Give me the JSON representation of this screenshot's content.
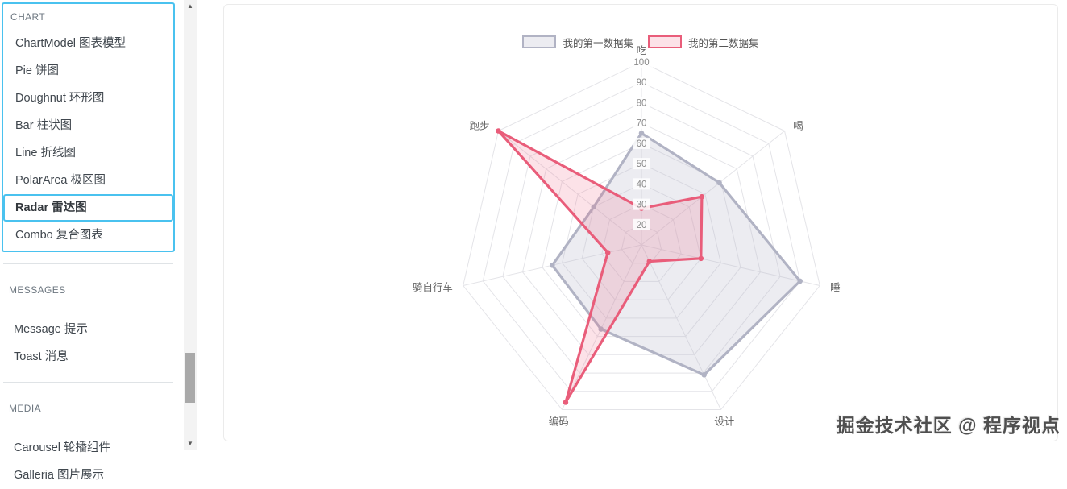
{
  "ui": {
    "accent_color": "#4ac2ef",
    "scrollbar": {
      "up_icon": "▲",
      "down_icon": "▼"
    }
  },
  "sidebar": {
    "sections": [
      {
        "title": "CHART",
        "items": [
          {
            "label": "ChartModel 图表模型",
            "selected": false
          },
          {
            "label": "Pie 饼图",
            "selected": false
          },
          {
            "label": "Doughnut 环形图",
            "selected": false
          },
          {
            "label": "Bar 柱状图",
            "selected": false
          },
          {
            "label": "Line 折线图",
            "selected": false
          },
          {
            "label": "PolarArea 极区图",
            "selected": false
          },
          {
            "label": "Radar 雷达图",
            "selected": true
          },
          {
            "label": "Combo 复合图表",
            "selected": false
          }
        ]
      },
      {
        "title": "MESSAGES",
        "items": [
          {
            "label": "Message 提示",
            "selected": false
          },
          {
            "label": "Toast 消息",
            "selected": false
          }
        ]
      },
      {
        "title": "MEDIA",
        "items": [
          {
            "label": "Carousel 轮播组件",
            "selected": false
          },
          {
            "label": "Galleria 图片展示",
            "selected": false
          }
        ]
      }
    ]
  },
  "chart_data": {
    "type": "radar",
    "title": "",
    "categories": [
      "吃",
      "喝",
      "睡",
      "设计",
      "编码",
      "骑自行车",
      "跑步"
    ],
    "series": [
      {
        "name": "我的第一数据集",
        "values": [
          65,
          59,
          90,
          81,
          56,
          55,
          40
        ],
        "border_color": "#b1b3c4",
        "fill_color": "rgba(179,181,198,0.25)"
      },
      {
        "name": "我的第二数据集",
        "values": [
          28,
          48,
          40,
          19,
          96,
          27,
          100
        ],
        "border_color": "#e95d7a",
        "fill_color": "rgba(236,94,125,0.18)"
      }
    ],
    "scale": {
      "min": 10,
      "max": 100,
      "step": 10,
      "tick_labels": [
        20,
        30,
        40,
        50,
        60,
        70,
        80,
        90,
        100
      ]
    },
    "legend_position": "top",
    "grid": true,
    "styles": {
      "grid_color": "#e4e4e8",
      "tick_color": "#8a8a8a",
      "tick_backdrop": "rgba(255,255,255,0.85)",
      "point_label_color": "#666666"
    }
  },
  "watermark": {
    "text": "掘金技术社区 @ 程序视点"
  }
}
